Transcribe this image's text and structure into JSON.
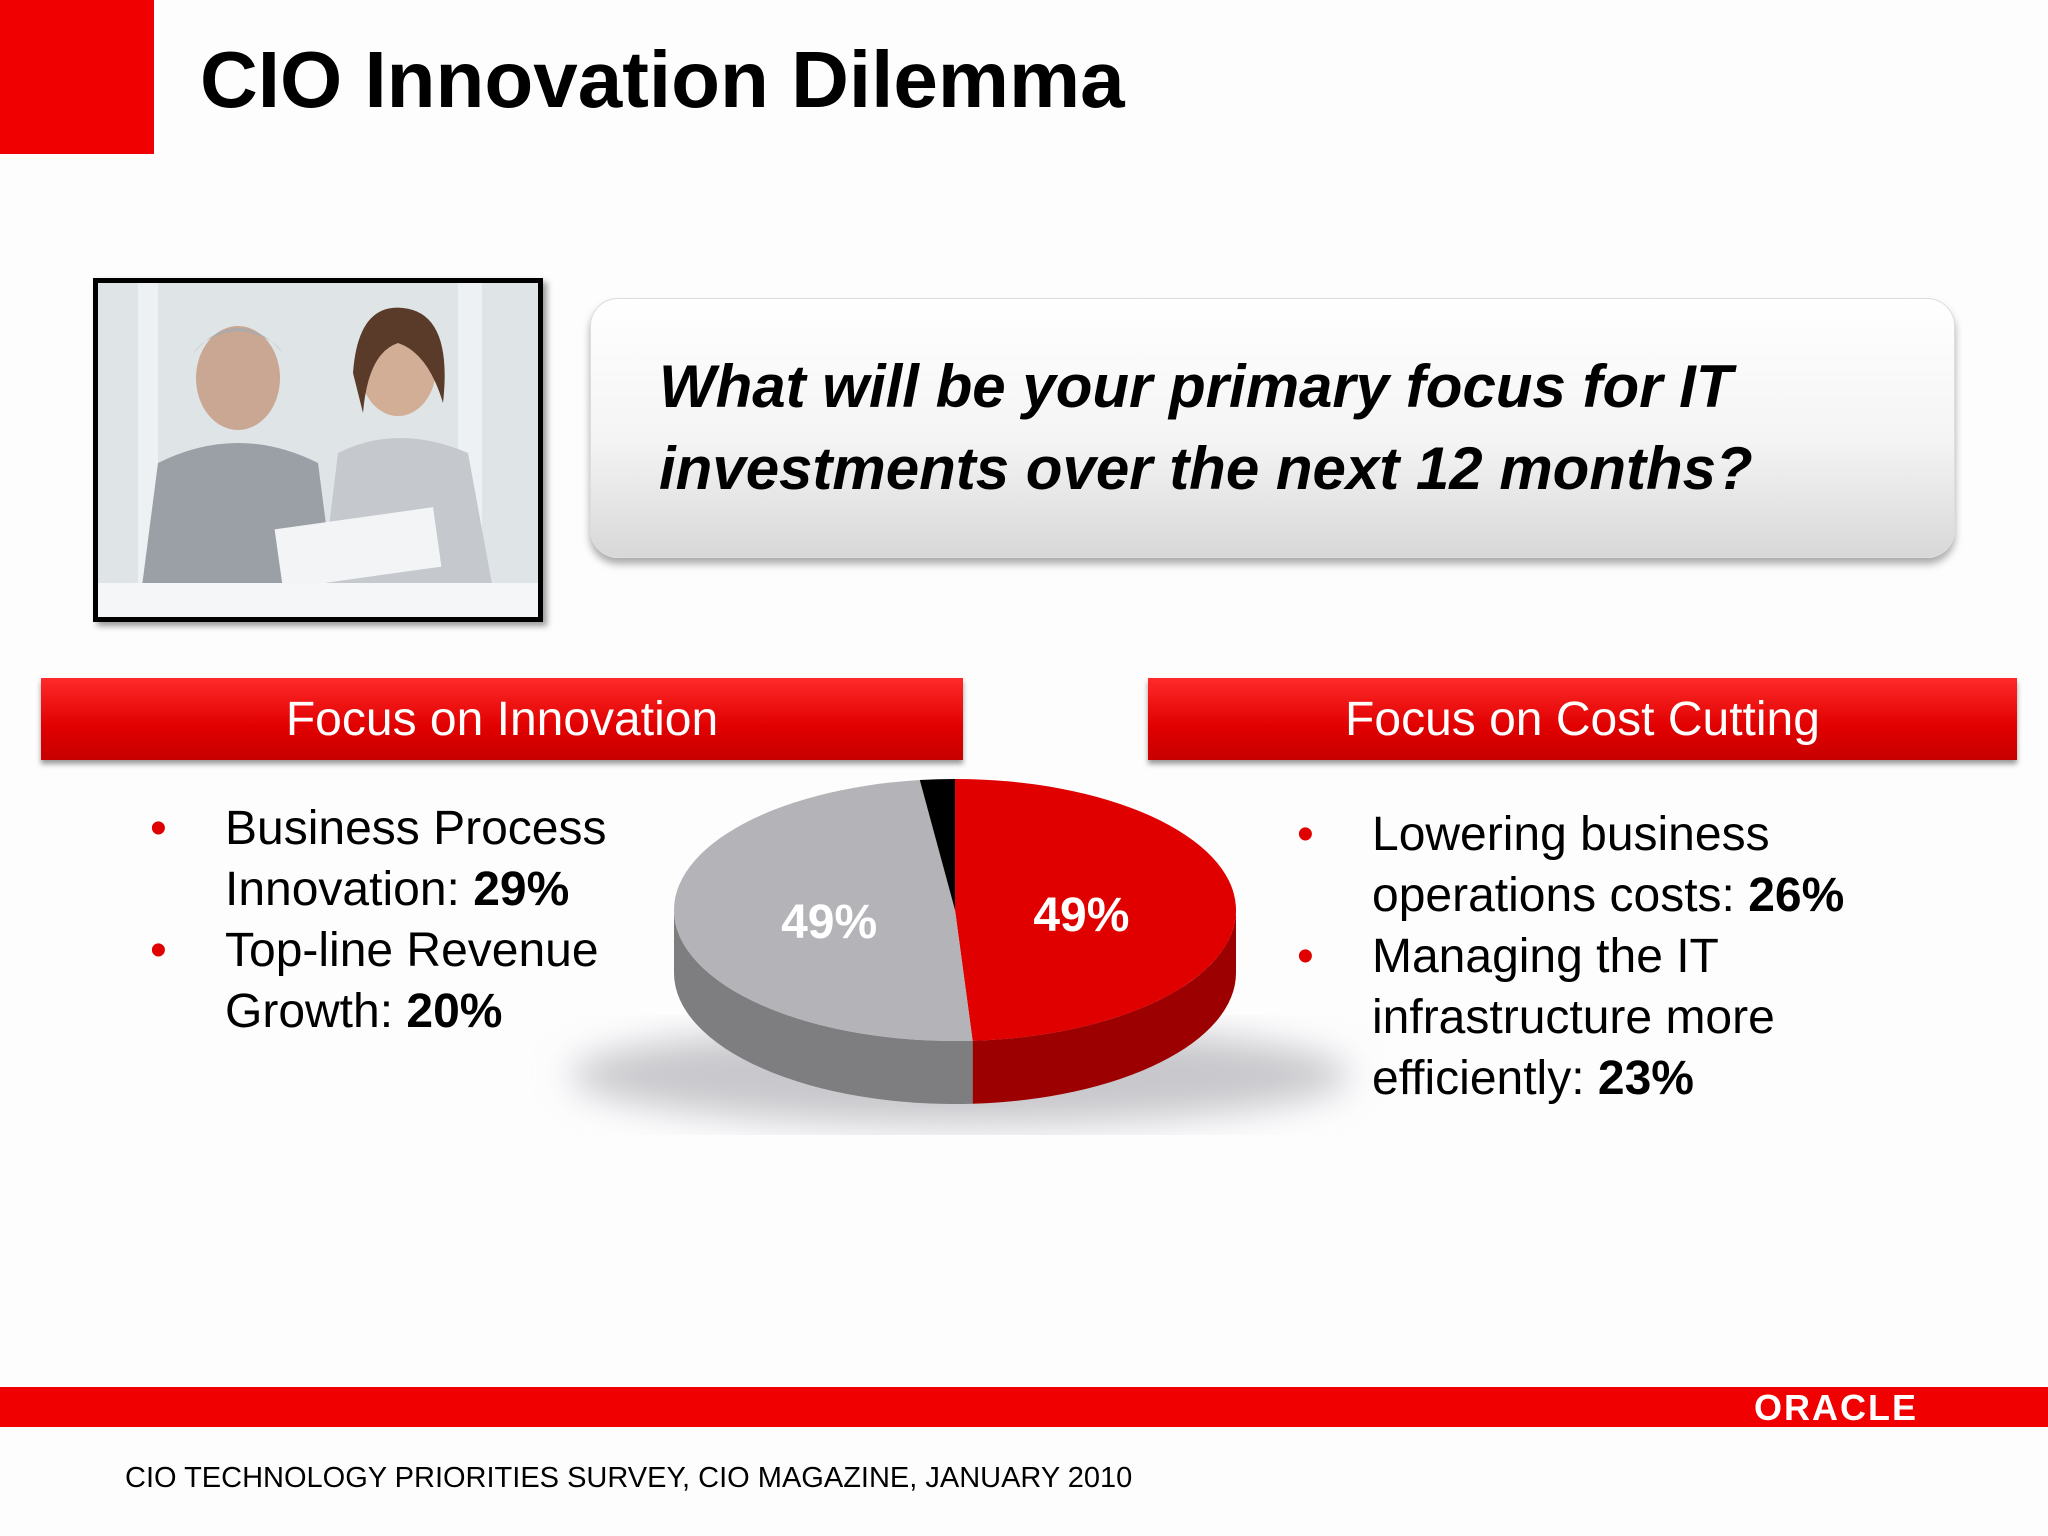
{
  "title": "CIO Innovation Dilemma",
  "question": "What will be your primary focus for IT investments over the next 12 months?",
  "panels": [
    {
      "header": "Focus on Innovation",
      "items": [
        {
          "text": "Business Process Innovation:",
          "value": "29%"
        },
        {
          "text": "Top-line Revenue Growth:",
          "value": "20%"
        }
      ]
    },
    {
      "header": "Focus on Cost Cutting",
      "items": [
        {
          "text": "Lowering business operations costs:",
          "value": "26%"
        },
        {
          "text": "Managing the IT infrastructure more efficiently:",
          "value": "23%"
        }
      ]
    }
  ],
  "chart_data": {
    "type": "pie",
    "values": [
      49,
      49,
      2
    ],
    "value_labels": [
      "49%",
      "49%",
      null
    ],
    "colors": [
      "#e00000",
      "#b4b4b8",
      "#000000"
    ]
  },
  "footer": {
    "logo": "ORACLE",
    "source": "CIO TECHNOLOGY PRIORITIES SURVEY, CIO MAGAZINE, JANUARY 2010"
  }
}
